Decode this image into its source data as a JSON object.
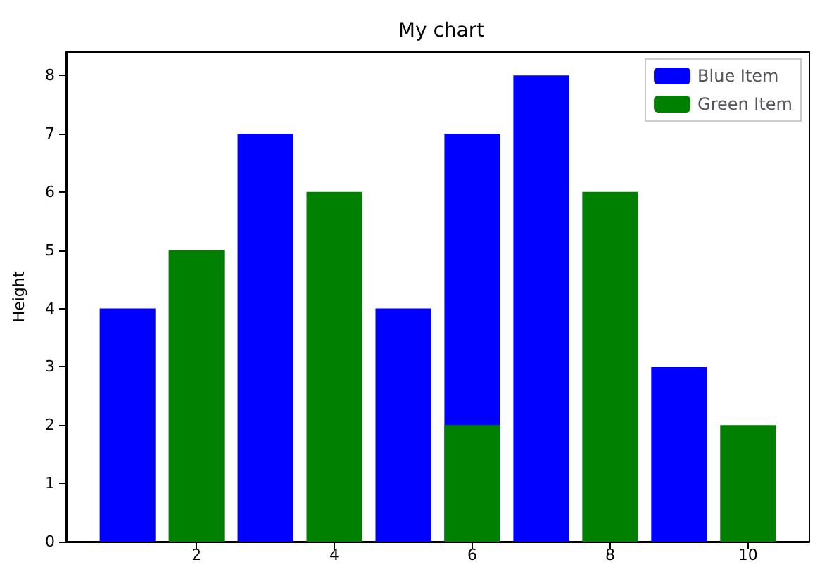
{
  "chart_data": {
    "type": "bar",
    "title": "My chart",
    "ylabel": "Height",
    "series": [
      {
        "name": "Blue Item",
        "color": "#0000ff",
        "x": [
          1,
          3,
          5,
          6,
          7,
          9
        ],
        "values": [
          4,
          7,
          4,
          7,
          8,
          3
        ]
      },
      {
        "name": "Green Item",
        "color": "#008000",
        "x": [
          2,
          4,
          6,
          8,
          10
        ],
        "values": [
          5,
          6,
          2,
          6,
          2
        ]
      }
    ],
    "xlim": [
      0.11,
      10.89
    ],
    "xticks": [
      2,
      4,
      6,
      8,
      10
    ],
    "ylim": [
      0,
      8.4
    ],
    "yticks": [
      0,
      1,
      2,
      3,
      4,
      5,
      6,
      7,
      8
    ],
    "grid": false,
    "legend": "top right"
  }
}
